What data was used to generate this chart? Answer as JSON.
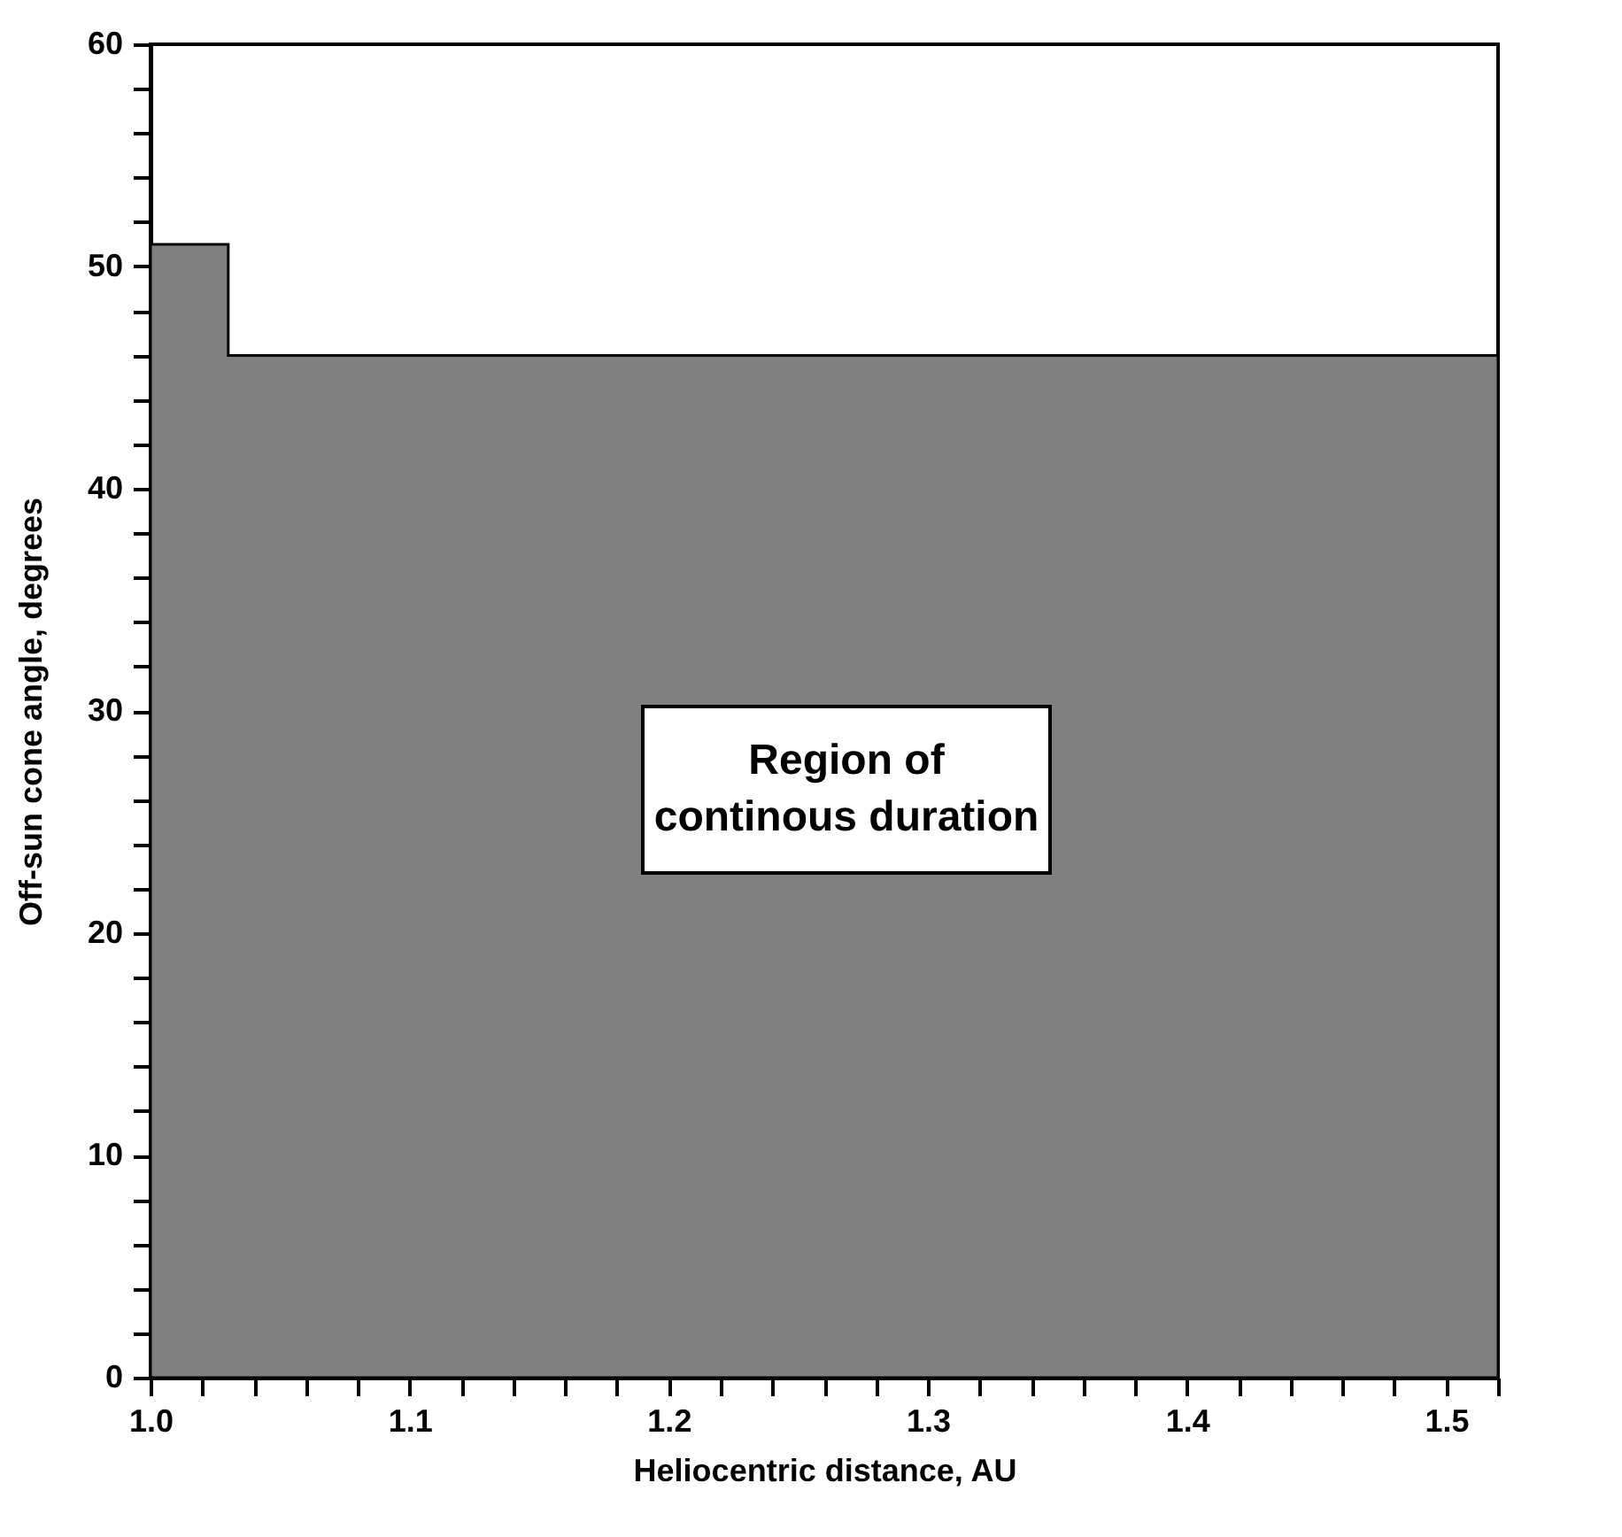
{
  "chart_data": {
    "type": "area",
    "xlabel": "Heliocentric distance, AU",
    "ylabel": "Off-sun cone angle, degrees",
    "x": [
      1.0,
      1.03,
      1.03,
      1.52
    ],
    "series": [
      {
        "color": "#808080",
        "values": [
          51,
          51,
          46,
          46
        ]
      }
    ],
    "xlim": [
      1.0,
      1.52
    ],
    "ylim": [
      0,
      60
    ],
    "xticks": [
      {
        "value": 1,
        "label": "1.0"
      },
      {
        "value": 1.02,
        "label": null
      },
      {
        "value": 1.04,
        "label": null
      },
      {
        "value": 1.06,
        "label": null
      },
      {
        "value": 1.08,
        "label": null
      },
      {
        "value": 1.1,
        "label": "1.1"
      },
      {
        "value": 1.12,
        "label": null
      },
      {
        "value": 1.14,
        "label": null
      },
      {
        "value": 1.16,
        "label": null
      },
      {
        "value": 1.18,
        "label": null
      },
      {
        "value": 1.2,
        "label": "1.2"
      },
      {
        "value": 1.22,
        "label": null
      },
      {
        "value": 1.24,
        "label": null
      },
      {
        "value": 1.26,
        "label": null
      },
      {
        "value": 1.28,
        "label": null
      },
      {
        "value": 1.3,
        "label": "1.3"
      },
      {
        "value": 1.32,
        "label": null
      },
      {
        "value": 1.34,
        "label": null
      },
      {
        "value": 1.36,
        "label": null
      },
      {
        "value": 1.38,
        "label": null
      },
      {
        "value": 1.4,
        "label": "1.4"
      },
      {
        "value": 1.42,
        "label": null
      },
      {
        "value": 1.44,
        "label": null
      },
      {
        "value": 1.46,
        "label": null
      },
      {
        "value": 1.48,
        "label": null
      },
      {
        "value": 1.5,
        "label": "1.5"
      },
      {
        "value": 1.52,
        "label": null
      }
    ],
    "yticks": [
      0,
      {
        "value": 2,
        "label": null
      },
      {
        "value": 4,
        "label": null
      },
      {
        "value": 6,
        "label": null
      },
      {
        "value": 8,
        "label": null
      },
      10,
      {
        "value": 12,
        "label": null
      },
      {
        "value": 14,
        "label": null
      },
      {
        "value": 16,
        "label": null
      },
      {
        "value": 18,
        "label": null
      },
      20,
      {
        "value": 22,
        "label": null
      },
      {
        "value": 24,
        "label": null
      },
      {
        "value": 26,
        "label": null
      },
      {
        "value": 28,
        "label": null
      },
      30,
      {
        "value": 32,
        "label": null
      },
      {
        "value": 34,
        "label": null
      },
      {
        "value": 36,
        "label": null
      },
      {
        "value": 38,
        "label": null
      },
      40,
      {
        "value": 42,
        "label": null
      },
      {
        "value": 44,
        "label": null
      },
      {
        "value": 46,
        "label": null
      },
      {
        "value": 48,
        "label": null
      },
      50,
      {
        "value": 52,
        "label": null
      },
      {
        "value": 54,
        "label": null
      },
      {
        "value": 56,
        "label": null
      },
      {
        "value": 58,
        "label": null
      },
      60
    ],
    "annotations": [
      "Region of\ncontinous duration"
    ]
  }
}
